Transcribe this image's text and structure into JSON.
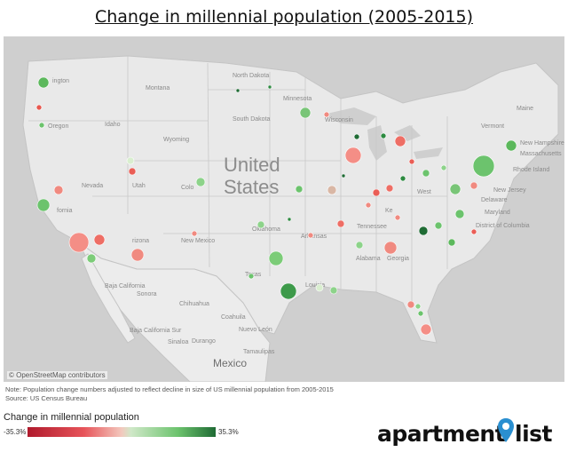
{
  "title": "Change in millennial population (2005-2015)",
  "map": {
    "big_label_1": "United",
    "big_label_2": "States",
    "mexico_label": "Mexico",
    "attribution": "© OpenStreetMap contributors",
    "region_labels": [
      "North Dakota",
      "South Dakota",
      "Montana",
      "Minnesota",
      "Wyoming",
      "Idaho",
      "Oregon",
      "ington",
      "Nevada",
      "Utah",
      "Colo",
      "fornia",
      "rizona",
      "New Mexico",
      "Oklahoma",
      "Texas",
      "Arkansas",
      "Alabama",
      "Georgia",
      "Tennessee",
      "Wisconsin",
      "Maine",
      "Vermont",
      "New Hampshire",
      "Massachusetts",
      "Rhode Island",
      "New Jersey",
      "Delaware",
      "Maryland",
      "District of Columbia",
      "West",
      "Baja California",
      "Baja California Sur",
      "Sonora",
      "Chihuahua",
      "Coahuila",
      "Sinaloa",
      "Durango",
      "Nuevo León",
      "Tamaulipas",
      "Louisia",
      "Ke"
    ]
  },
  "note": "Note: Population change numbers adjusted to reflect decline in size of US millennial population from 2005-2015",
  "source": "Source: US Census Bureau",
  "legend": {
    "title": "Change in millennial population",
    "min": "-35.3%",
    "max": "35.3%",
    "colors": {
      "low": "#b01a2c",
      "mid": "#f3c8bd",
      "high": "#1f6b34"
    }
  },
  "brand": {
    "word1": "apartment",
    "word2": "list",
    "pin_color": "#2a8fd0"
  }
}
